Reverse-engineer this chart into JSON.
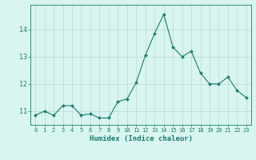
{
  "x": [
    0,
    1,
    2,
    3,
    4,
    5,
    6,
    7,
    8,
    9,
    10,
    11,
    12,
    13,
    14,
    15,
    16,
    17,
    18,
    19,
    20,
    21,
    22,
    23
  ],
  "y": [
    10.85,
    11.0,
    10.85,
    11.2,
    11.2,
    10.85,
    10.9,
    10.75,
    10.75,
    11.35,
    11.45,
    12.05,
    13.05,
    13.85,
    14.55,
    13.35,
    13.0,
    13.2,
    12.4,
    12.0,
    12.0,
    12.25,
    11.75,
    11.5
  ],
  "line_color": "#1a7a6e",
  "marker": "D",
  "marker_size": 2.0,
  "bg_color": "#d8f5f0",
  "grid_color": "#b8d8d4",
  "xlabel": "Humidex (Indice chaleur)",
  "xlabel_fontsize": 6.5,
  "ytick_fontsize": 6,
  "xtick_fontsize": 5,
  "ylim": [
    10.5,
    14.9
  ],
  "yticks": [
    11,
    12,
    13,
    14
  ],
  "xlim": [
    -0.5,
    23.5
  ]
}
